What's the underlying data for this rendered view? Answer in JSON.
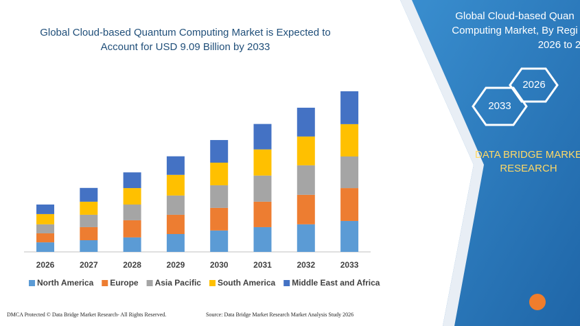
{
  "chart_data": {
    "type": "bar",
    "stacked": true,
    "title": "Global Cloud-based Quantum Computing Market is Expected to Account for USD 9.09 Billion by 2033",
    "categories": [
      "2026",
      "2027",
      "2028",
      "2029",
      "2030",
      "2031",
      "2032",
      "2033"
    ],
    "series": [
      {
        "name": "North America",
        "color": "#5b9bd5",
        "values": [
          0.54,
          0.66,
          0.82,
          1.01,
          1.21,
          1.4,
          1.56,
          1.75
        ]
      },
      {
        "name": "Europe",
        "color": "#ed7d31",
        "values": [
          0.51,
          0.74,
          0.97,
          1.09,
          1.28,
          1.44,
          1.67,
          1.86
        ]
      },
      {
        "name": "Asia Pacific",
        "color": "#a5a5a5",
        "values": [
          0.51,
          0.7,
          0.89,
          1.09,
          1.28,
          1.48,
          1.67,
          1.79
        ]
      },
      {
        "name": "South America",
        "color": "#ffc000",
        "values": [
          0.58,
          0.74,
          0.93,
          1.17,
          1.28,
          1.48,
          1.63,
          1.83
        ]
      },
      {
        "name": "Middle East and Africa",
        "color": "#4472c4",
        "values": [
          0.54,
          0.78,
          0.89,
          1.05,
          1.28,
          1.44,
          1.63,
          1.86
        ]
      }
    ]
  },
  "side_panel": {
    "title_lines": [
      "Global Cloud-based Quan",
      "Computing Market, By Regi",
      "2026 to 2"
    ],
    "hex_start": "2026",
    "hex_end": "2033",
    "brand_lines": [
      "DATA BRIDGE MARKE",
      "RESEARCH"
    ]
  },
  "footer": {
    "left": "DMCA Protected © Data Bridge Market Research- All Rights Reserved.",
    "right": "Source: Data Bridge Market Research  Market Analysis Study 2026"
  }
}
